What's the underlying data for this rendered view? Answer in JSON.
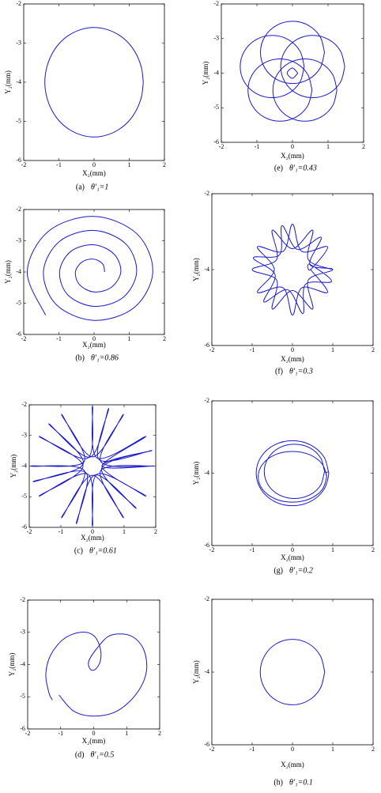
{
  "chart_data": [
    {
      "type": "line",
      "caption_label": "(a)",
      "caption": "θ′₁=1",
      "x_label": "X₂(mm)",
      "y_label": "Y₂(mm)",
      "xlim": [
        -2,
        2
      ],
      "ylim": [
        -6,
        -2
      ],
      "xticks": [
        -2,
        -1,
        0,
        1,
        2
      ],
      "yticks": [
        -6,
        -5,
        -4,
        -3,
        -2
      ],
      "series": [
        {
          "color": "#1a1acc",
          "x": [
            1.4,
            1.35,
            1.21,
            0.99,
            0.7,
            0.36,
            0,
            -0.36,
            -0.7,
            -0.99,
            -1.21,
            -1.35,
            -1.4,
            -1.35,
            -1.21,
            -0.99,
            -0.7,
            -0.36,
            0,
            0.36,
            0.7,
            0.99,
            1.21,
            1.35,
            1.4
          ],
          "values": [
            -4,
            -3.64,
            -3.3,
            -3.01,
            -2.79,
            -2.65,
            -2.6,
            -2.65,
            -2.79,
            -3.01,
            -3.3,
            -3.64,
            -4,
            -4.36,
            -4.7,
            -4.99,
            -5.21,
            -5.35,
            -5.4,
            -5.35,
            -5.21,
            -4.99,
            -4.7,
            -4.36,
            -4
          ]
        }
      ]
    },
    {
      "type": "line",
      "caption_label": "(b)",
      "caption": "θ′₁=0.86",
      "x_label": "X₂(mm)",
      "y_label": "Y₂(mm)",
      "xlim": [
        -2,
        2
      ],
      "ylim": [
        -6,
        -2
      ],
      "xticks": [
        -2,
        -1,
        0,
        1,
        2
      ],
      "yticks": [
        -6,
        -5,
        -4,
        -3,
        -2
      ],
      "series": [
        {
          "color": "#1a1acc",
          "x": [
            0.3,
            0.25,
            0,
            -0.33,
            -0.53,
            -0.41,
            0,
            0.49,
            0.76,
            0.57,
            0,
            -0.66,
            -0.98,
            -0.74,
            0,
            0.82,
            1.21,
            0.9,
            0,
            -0.98,
            -1.44,
            -1.06,
            0,
            1.14,
            1.67,
            1.22,
            0,
            -1.3,
            -1.9,
            -1.38
          ],
          "values": [
            -4,
            -3.75,
            -3.59,
            -3.67,
            -4,
            -4.41,
            -4.64,
            -4.49,
            -4,
            -3.43,
            -3.13,
            -3.34,
            -4,
            -4.74,
            -5.1,
            -4.82,
            -4,
            -3.1,
            -2.67,
            -3.02,
            -4,
            -5.06,
            -5.55,
            -5.14,
            -4,
            -2.78,
            -2.22,
            -2.7,
            -4,
            -5.38
          ]
        }
      ]
    },
    {
      "type": "line",
      "caption_label": "(c)",
      "caption": "θ′₁=0.61",
      "x_label": "X₂(mm)",
      "y_label": "Y₂(mm)",
      "xlim": [
        -2,
        2
      ],
      "ylim": [
        -6,
        -2
      ],
      "xticks": [
        -2,
        -1,
        0,
        1,
        2
      ],
      "yticks": [
        -6,
        -5,
        -4,
        -3,
        -2
      ],
      "series": [
        {
          "color": "#1a1acc",
          "x": [
            1.95,
            0.26,
            0.98,
            0,
            -0.98,
            -0.26,
            -1.95,
            -0.26,
            -0.98,
            0,
            0.98,
            0.26,
            1.95,
            0.3,
            1.69,
            0.15,
            0,
            -0.15,
            -1.69,
            -0.3,
            -1.69,
            -0.15,
            0,
            0.15,
            1.69,
            0.3,
            1.88,
            0.21,
            0.51,
            -0.08,
            -1.38,
            -0.29,
            -1.88,
            -0.21,
            -0.51,
            0.08,
            1.38,
            0.29,
            1.88
          ],
          "values": [
            -4,
            -3.85,
            -2.31,
            -3.7,
            -2.31,
            -3.85,
            -4,
            -4.15,
            -5.69,
            -4.3,
            -5.69,
            -4.15,
            -4,
            -4,
            -3.03,
            -3.74,
            -2.05,
            -3.74,
            -3.03,
            -4,
            -4.98,
            -4.26,
            -5.95,
            -4.26,
            -4.98,
            -4,
            -3.49,
            -3.79,
            -2.12,
            -3.71,
            -2.62,
            -3.92,
            -4.51,
            -4.21,
            -5.88,
            -4.29,
            -5.38,
            -4.08,
            -3.49
          ]
        }
      ]
    },
    {
      "type": "line",
      "caption_label": "(d)",
      "caption": "θ′₁=0.5",
      "x_label": "X₂(mm)",
      "y_label": "Y₂(mm)",
      "xlim": [
        -2,
        2
      ],
      "ylim": [
        -6,
        -2
      ],
      "xticks": [
        -2,
        -1,
        0,
        1,
        2
      ],
      "yticks": [
        -6,
        -5,
        -4,
        -3,
        -2
      ],
      "series": [
        {
          "color": "#1a1acc",
          "x": [
            -1.05,
            -0.6,
            0,
            0.7,
            1.3,
            1.6,
            1.5,
            1.1,
            0.5,
            0.1,
            -0.15,
            -0.1,
            0.05,
            0.2,
            0.2,
            0,
            -0.4,
            -0.9,
            -1.3,
            -1.45,
            -1.35,
            -1.25
          ],
          "values": [
            -4.95,
            -5.45,
            -5.6,
            -5.45,
            -4.9,
            -4.2,
            -3.5,
            -3.1,
            -3.1,
            -3.5,
            -3.9,
            -4.15,
            -4.15,
            -3.9,
            -3.5,
            -3.1,
            -3,
            -3.2,
            -3.7,
            -4.3,
            -4.9,
            -5.1
          ]
        }
      ]
    },
    {
      "type": "line",
      "caption_label": "(e)",
      "caption": "θ′₁=0.43",
      "x_label": "X₂(mm)",
      "y_label": "Y₂(mm)",
      "xlim": [
        -2,
        2
      ],
      "ylim": [
        -6,
        -2
      ],
      "xticks": [
        -2,
        -1,
        0,
        1,
        2
      ],
      "yticks": [
        -6,
        -5,
        -4,
        -3,
        -2
      ],
      "series": [
        {
          "color": "#1a1acc",
          "x": [
            0.9,
            0.78,
            0.45,
            0,
            -0.45,
            -0.78,
            -0.9,
            -0.78,
            -0.45,
            0,
            0.45,
            0.78,
            0.9,
            null,
            0.33,
            0.21,
            -0.12,
            -0.57,
            -1.02,
            -1.35,
            -1.47,
            -1.35,
            -1.02,
            -0.57,
            -0.12,
            0.21,
            0.33,
            null,
            0.55,
            0.43,
            0.1,
            -0.35,
            -0.8,
            -1.13,
            -1.25,
            -1.13,
            -0.8,
            -0.35,
            0.1,
            0.43,
            0.55,
            null,
            1.25,
            1.13,
            0.8,
            0.35,
            -0.1,
            -0.43,
            -0.55,
            -0.43,
            -0.1,
            0.35,
            0.8,
            1.13,
            1.25,
            null,
            1.47,
            1.35,
            1.02,
            0.57,
            0.12,
            -0.21,
            -0.33,
            -0.21,
            0.12,
            0.57,
            1.02,
            1.35,
            1.47,
            null,
            0.15,
            0,
            -0.15,
            0,
            0.15
          ],
          "values": [
            -3.4,
            -2.95,
            -2.62,
            -2.5,
            -2.62,
            -2.95,
            -3.4,
            -3.85,
            -4.18,
            -4.3,
            -4.18,
            -3.85,
            -3.4,
            null,
            -3.81,
            -3.36,
            -3.03,
            -2.91,
            -3.03,
            -3.36,
            -3.81,
            -4.26,
            -4.59,
            -4.71,
            -4.59,
            -4.26,
            -3.81,
            null,
            -4.49,
            -4.04,
            -3.71,
            -3.59,
            -3.71,
            -4.04,
            -4.49,
            -4.94,
            -5.27,
            -5.39,
            -5.27,
            -4.94,
            -4.49,
            null,
            -4.49,
            -4.04,
            -3.71,
            -3.59,
            -3.71,
            -4.04,
            -4.49,
            -4.94,
            -5.27,
            -5.39,
            -5.27,
            -4.94,
            -4.49,
            null,
            -3.81,
            -3.36,
            -3.03,
            -2.91,
            -3.03,
            -3.36,
            -3.81,
            -4.26,
            -4.59,
            -4.71,
            -4.59,
            -4.26,
            -3.81,
            null,
            -4,
            -3.85,
            -4,
            -4.15,
            -4
          ]
        }
      ]
    },
    {
      "type": "line",
      "caption_label": "(f)",
      "caption": "θ′₁=0.3",
      "x_label": "X₂(mm)",
      "y_label": "Y₂(mm)",
      "xlim": [
        -2,
        2
      ],
      "ylim": [
        -6,
        -2
      ],
      "xticks": [
        -2,
        -1,
        0,
        1,
        2
      ],
      "yticks": [
        -6,
        -4,
        -2
      ],
      "series": [
        {
          "color": "#1a1acc",
          "x": [
            1,
            0.39,
            0.5,
            0,
            -0.5,
            -0.39,
            -1,
            -0.39,
            -0.5,
            0,
            0.5,
            0.39,
            1,
            0.43,
            0.71,
            0.12,
            -0.26,
            -0.32,
            -0.97,
            -0.43,
            -0.71,
            -0.12,
            0.26,
            0.32,
            0.97,
            0.43,
            0.45,
            0.87,
            0.23,
            0,
            -0.23,
            -0.87,
            -0.45,
            -0.87,
            -0.23,
            0,
            0.23,
            0.87,
            0.45
          ],
          "values": [
            -4,
            -3.73,
            -2.96,
            -3.45,
            -2.96,
            -3.73,
            -4,
            -4.28,
            -5.04,
            -4.55,
            -5.04,
            -4.28,
            -4,
            -3.86,
            -3.15,
            -3.47,
            -2.84,
            -3.61,
            -3.69,
            -4.14,
            -4.85,
            -4.53,
            -5.16,
            -4.39,
            -4.31,
            -3.86,
            -4,
            -3.4,
            -3.52,
            -2.8,
            -3.52,
            -3.4,
            -4,
            -4.6,
            -4.48,
            -5.2,
            -4.48,
            -4.6,
            -4
          ]
        }
      ]
    },
    {
      "type": "line",
      "caption_label": "(g)",
      "caption": "θ′₁=0.2",
      "x_label": "X₂(mm)",
      "y_label": "Y₂(mm)",
      "xlim": [
        -2,
        2
      ],
      "ylim": [
        -6,
        -2
      ],
      "xticks": [
        -2,
        -1,
        0,
        1,
        2
      ],
      "yticks": [
        -6,
        -4,
        -2
      ],
      "series": [
        {
          "color": "#1a1acc",
          "x": [
            0.9,
            0.78,
            0.45,
            0,
            -0.45,
            -0.78,
            -0.9,
            -0.78,
            -0.45,
            0,
            0.45,
            0.78,
            0.9,
            0.8,
            0.7,
            0.43,
            0.05,
            -0.33,
            -0.6,
            -0.7,
            -0.6,
            -0.33,
            0.05,
            0.43,
            0.7,
            0.8,
            0.85,
            0.74,
            0.43,
            0,
            -0.43,
            -0.74,
            -0.85,
            -0.74,
            -0.43,
            0,
            0.43,
            0.74,
            0.85
          ],
          "values": [
            -4,
            -3.55,
            -3.22,
            -3.1,
            -3.22,
            -3.55,
            -4,
            -4.45,
            -4.78,
            -4.9,
            -4.78,
            -4.45,
            -4,
            -3.95,
            -3.58,
            -3.3,
            -3.2,
            -3.3,
            -3.58,
            -3.95,
            -4.33,
            -4.6,
            -4.7,
            -4.6,
            -4.33,
            -3.95,
            -4.1,
            -3.75,
            -3.49,
            -3.4,
            -3.49,
            -3.75,
            -4.1,
            -4.45,
            -4.71,
            -4.8,
            -4.71,
            -4.45,
            -4.1
          ]
        }
      ]
    },
    {
      "type": "line",
      "caption_label": "(h)",
      "caption": "θ′₁=0.1",
      "x_label": "X₂(mm)",
      "y_label": "Y₂(mm)",
      "xlim": [
        -2,
        2
      ],
      "ylim": [
        -6,
        -2
      ],
      "xticks": [
        -2,
        -1,
        0,
        1,
        2
      ],
      "yticks": [
        -6,
        -4,
        -2
      ],
      "series": [
        {
          "color": "#1a1acc",
          "x": [
            0.8,
            0.69,
            0.4,
            0,
            -0.4,
            -0.69,
            -0.8,
            -0.69,
            -0.4,
            0,
            0.4,
            0.69,
            0.8
          ],
          "values": [
            -4,
            -3.55,
            -3.22,
            -3.1,
            -3.22,
            -3.55,
            -4,
            -4.45,
            -4.78,
            -4.9,
            -4.78,
            -4.45,
            -4
          ]
        }
      ]
    }
  ]
}
